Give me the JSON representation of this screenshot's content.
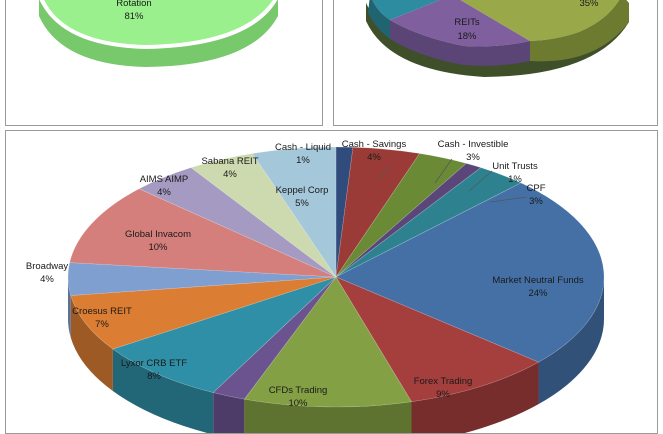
{
  "chart_data": [
    {
      "type": "pie",
      "name": "top-left-partial-pie",
      "slices": [
        {
          "label": "Rotation",
          "value": 81,
          "pct": "81%",
          "color": "#99f08c"
        }
      ]
    },
    {
      "type": "pie",
      "name": "top-right-partial-pie",
      "slices": [
        {
          "label": "REITs",
          "value": 18,
          "pct": "18%",
          "color": "#7f5f9e"
        },
        {
          "label": "",
          "value": 35,
          "pct": "35%",
          "color": "#99a94a"
        }
      ]
    },
    {
      "type": "pie",
      "name": "portfolio-allocation-pie",
      "slices": [
        {
          "label": "Cash - Liquid",
          "value": 1,
          "pct": "1%",
          "color": "#2f4c7d"
        },
        {
          "label": "Cash - Savings",
          "value": 4,
          "pct": "4%",
          "color": "#9b3b38"
        },
        {
          "label": "Cash - Investible",
          "value": 3,
          "pct": "3%",
          "color": "#6a8a36"
        },
        {
          "label": "Unit Trusts",
          "value": 1,
          "pct": "1%",
          "color": "#5a4678"
        },
        {
          "label": "CPF",
          "value": 3,
          "pct": "3%",
          "color": "#2e8290"
        },
        {
          "label": "Market Neutral Funds",
          "value": 24,
          "pct": "24%",
          "color": "#4470a6"
        },
        {
          "label": "Forex Trading",
          "value": 9,
          "pct": "9%",
          "color": "#a43f3d"
        },
        {
          "label": "CFDs Trading",
          "value": 10,
          "pct": "10%",
          "color": "#84a044"
        },
        {
          "label": "",
          "value": 2,
          "pct": "",
          "color": "#6b5390"
        },
        {
          "label": "Lyxor CRB ETF",
          "value": 8,
          "pct": "8%",
          "color": "#2f8fa6"
        },
        {
          "label": "Croesus REIT",
          "value": 7,
          "pct": "7%",
          "color": "#db7d32"
        },
        {
          "label": "Broadway",
          "value": 4,
          "pct": "4%",
          "color": "#7f9fd1"
        },
        {
          "label": "Global Invacom",
          "value": 10,
          "pct": "10%",
          "color": "#d47f7c"
        },
        {
          "label": "AIMS AIMP",
          "value": 4,
          "pct": "4%",
          "color": "#a59ac2"
        },
        {
          "label": "Sabana REIT",
          "value": 4,
          "pct": "4%",
          "color": "#cdd9ae"
        },
        {
          "label": "Keppel Corp",
          "value": 5,
          "pct": "5%",
          "color": "#a4c7da"
        }
      ]
    }
  ]
}
